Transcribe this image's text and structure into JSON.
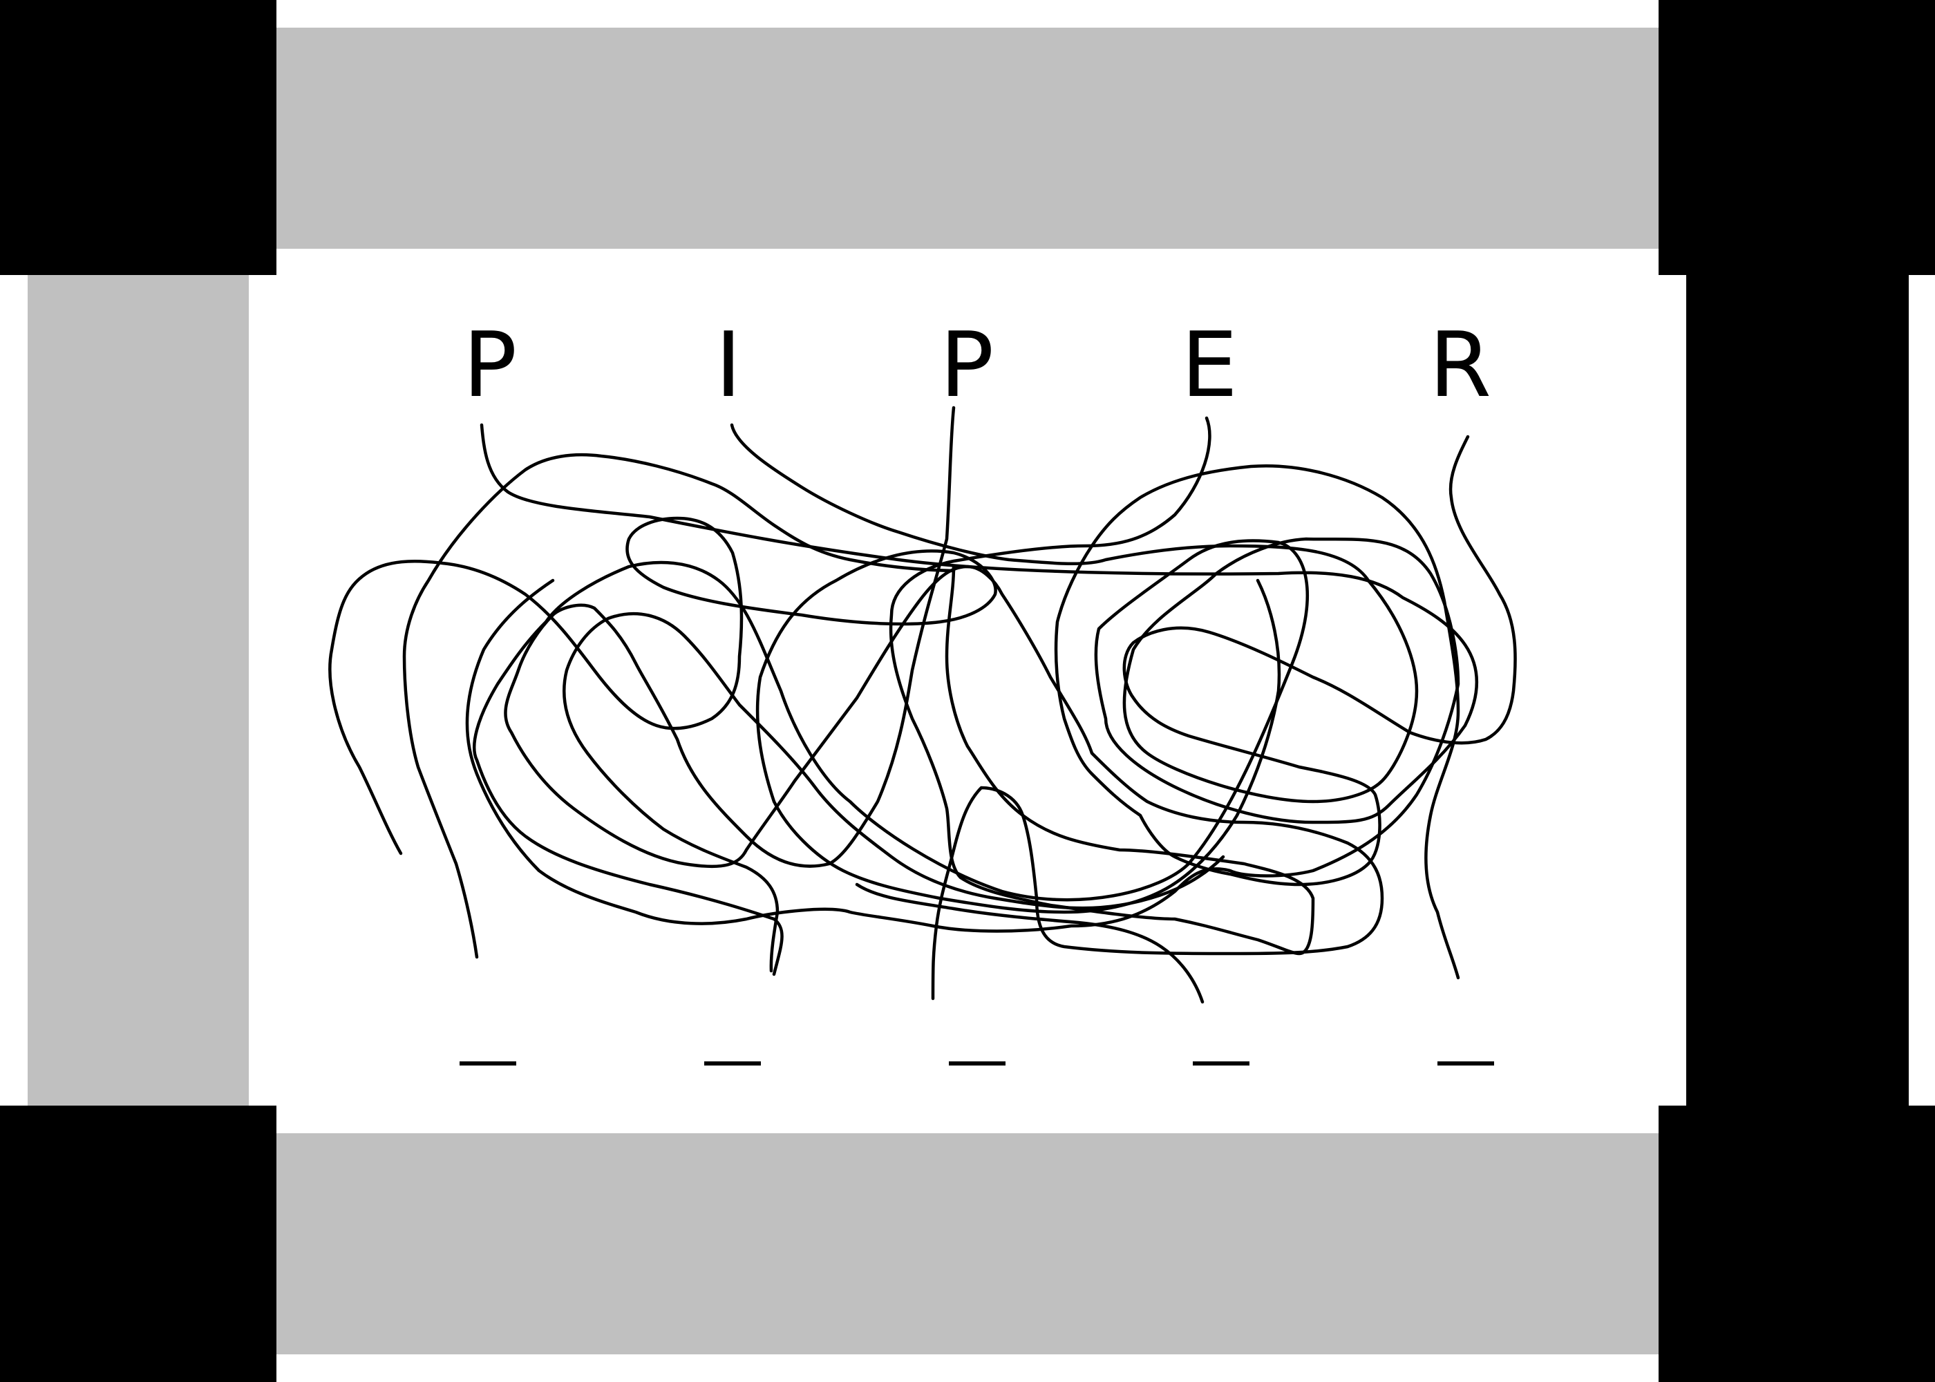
{
  "puzzle": {
    "type": "tangled-lines",
    "letters": [
      "P",
      "I",
      "P",
      "E",
      "R"
    ],
    "blank_count": 5,
    "ink_color": "#000000",
    "frame_colors": {
      "corner_blocks": "#000000",
      "side_bars": "#c0c0c0",
      "background": "#ffffff"
    }
  }
}
